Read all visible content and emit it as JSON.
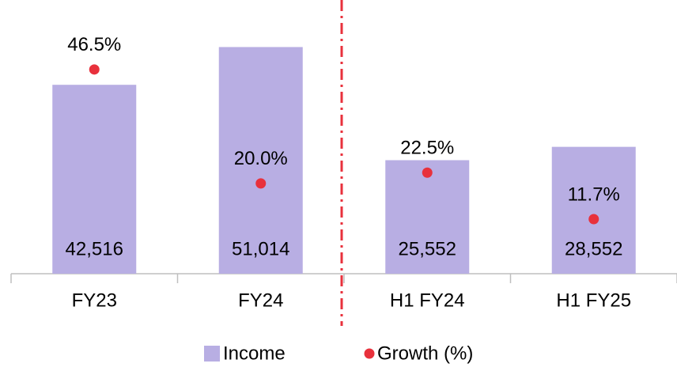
{
  "chart_data": {
    "type": "bar",
    "categories": [
      "FY23",
      "FY24",
      "H1 FY24",
      "H1 FY25"
    ],
    "series": [
      {
        "name": "Income",
        "type": "bar",
        "color": "#b8aee3",
        "values": [
          42516,
          51014,
          25552,
          28552
        ],
        "value_labels": [
          "42,516",
          "51,014",
          "25,552",
          "28,552"
        ]
      },
      {
        "name": "Growth (%)",
        "type": "scatter",
        "axis": "y2",
        "color": "#e8313c",
        "values": [
          46.5,
          20.0,
          22.5,
          11.7
        ],
        "value_labels": [
          "46.5%",
          "20.0%",
          "22.5%",
          "11.7%"
        ]
      }
    ],
    "ylim": [
      0,
      60000
    ],
    "y2lim": [
      -1,
      61
    ],
    "legend": "bottom"
  }
}
